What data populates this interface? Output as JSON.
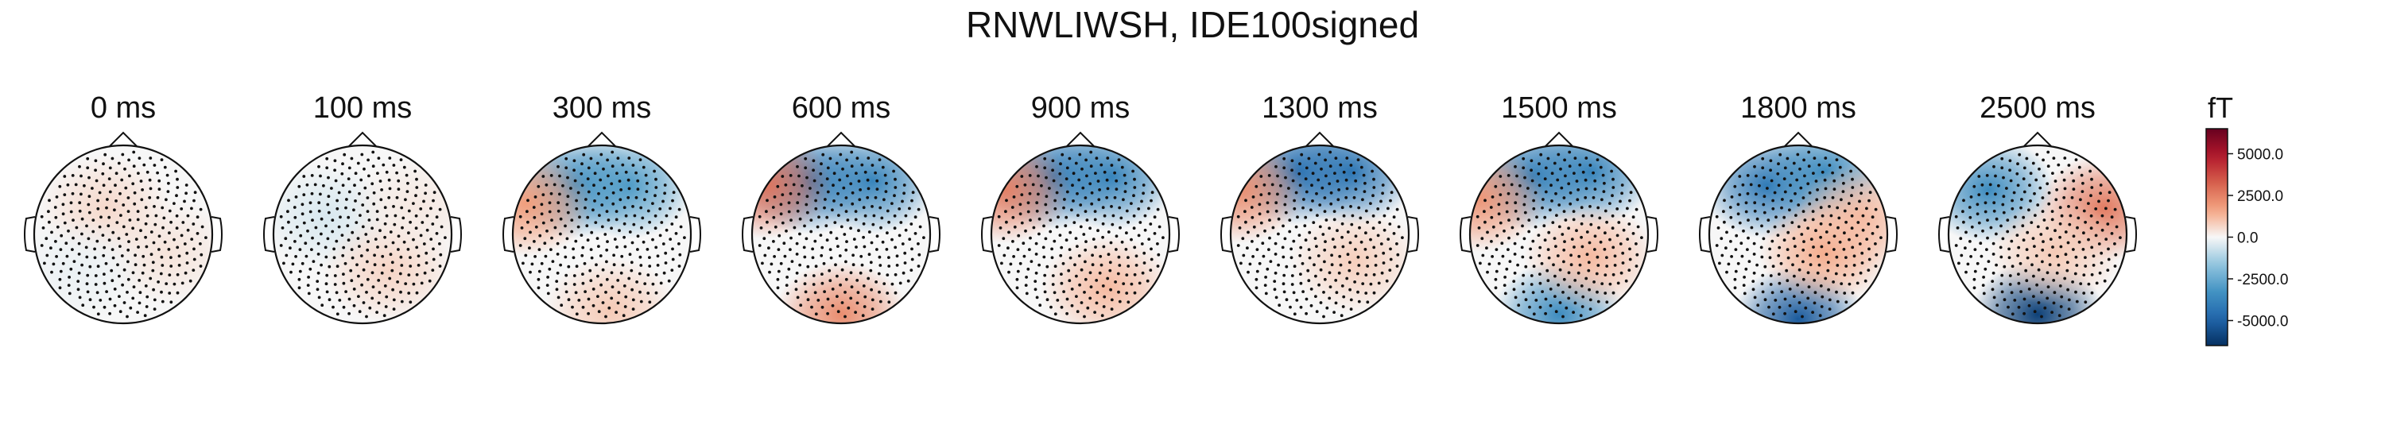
{
  "title": "RNWLIWSH, IDE100signed",
  "chart_data": {
    "type": "heatmap",
    "title": "RNWLIWSH, IDE100signed",
    "panels": [
      {
        "label": "0 ms",
        "t": 0,
        "maps": [
          {
            "x": -0.2,
            "y": -0.3,
            "v": 600
          },
          {
            "x": 0.5,
            "y": 0.2,
            "v": 400
          },
          {
            "x": -0.5,
            "y": 0.4,
            "v": -200
          }
        ]
      },
      {
        "label": "100 ms",
        "t": 100,
        "maps": [
          {
            "x": -0.4,
            "y": -0.2,
            "v": -500
          },
          {
            "x": 0.3,
            "y": 0.4,
            "v": 700
          },
          {
            "x": 0.6,
            "y": -0.3,
            "v": 300
          }
        ]
      },
      {
        "label": "300 ms",
        "t": 300,
        "maps": [
          {
            "x": -0.3,
            "y": -0.55,
            "v": -3500
          },
          {
            "x": 0.3,
            "y": -0.55,
            "v": -3000
          },
          {
            "x": -0.85,
            "y": -0.35,
            "v": 1800
          },
          {
            "x": 0.1,
            "y": 0.85,
            "v": 900
          }
        ]
      },
      {
        "label": "600 ms",
        "t": 600,
        "maps": [
          {
            "x": -0.35,
            "y": -0.6,
            "v": -4200
          },
          {
            "x": 0.35,
            "y": -0.6,
            "v": -3800
          },
          {
            "x": -0.85,
            "y": -0.55,
            "v": 2800
          },
          {
            "x": 0.0,
            "y": 0.9,
            "v": 2200
          }
        ]
      },
      {
        "label": "900 ms",
        "t": 900,
        "maps": [
          {
            "x": -0.3,
            "y": -0.65,
            "v": -4200
          },
          {
            "x": 0.35,
            "y": -0.65,
            "v": -3800
          },
          {
            "x": -0.85,
            "y": -0.5,
            "v": 2500
          },
          {
            "x": 0.3,
            "y": 0.6,
            "v": 1200
          }
        ]
      },
      {
        "label": "1300 ms",
        "t": 1300,
        "maps": [
          {
            "x": -0.25,
            "y": -0.7,
            "v": -4500
          },
          {
            "x": 0.35,
            "y": -0.7,
            "v": -4300
          },
          {
            "x": -0.9,
            "y": -0.5,
            "v": 2200
          },
          {
            "x": 0.4,
            "y": 0.3,
            "v": 800
          }
        ]
      },
      {
        "label": "1500 ms",
        "t": 1500,
        "maps": [
          {
            "x": -0.3,
            "y": -0.65,
            "v": -4000
          },
          {
            "x": 0.35,
            "y": -0.7,
            "v": -3800
          },
          {
            "x": -0.9,
            "y": -0.4,
            "v": 2000
          },
          {
            "x": 0.0,
            "y": 0.9,
            "v": -3500
          },
          {
            "x": 0.35,
            "y": 0.25,
            "v": 1200
          }
        ]
      },
      {
        "label": "1800 ms",
        "t": 1800,
        "maps": [
          {
            "x": -0.35,
            "y": -0.55,
            "v": -4200
          },
          {
            "x": 0.3,
            "y": -0.7,
            "v": -3500
          },
          {
            "x": 0.0,
            "y": 0.95,
            "v": -5200
          },
          {
            "x": 0.3,
            "y": 0.2,
            "v": 1500
          },
          {
            "x": 0.7,
            "y": -0.2,
            "v": 1200
          }
        ]
      },
      {
        "label": "2500 ms",
        "t": 2500,
        "maps": [
          {
            "x": -0.55,
            "y": -0.5,
            "v": -3500
          },
          {
            "x": 0.0,
            "y": 0.9,
            "v": -6000
          },
          {
            "x": 0.75,
            "y": -0.3,
            "v": 2600
          },
          {
            "x": 0.2,
            "y": 0.2,
            "v": 900
          }
        ]
      }
    ],
    "colorbar": {
      "unit": "fT",
      "colormap": "RdBu_r",
      "vmin": -6500,
      "vmax": 6500,
      "ticks": [
        5000.0,
        2500.0,
        0.0,
        -2500.0,
        -5000.0
      ],
      "tick_labels": [
        "5000.0",
        "2500.0",
        "0.0",
        "-2500.0",
        "-5000.0"
      ]
    }
  }
}
